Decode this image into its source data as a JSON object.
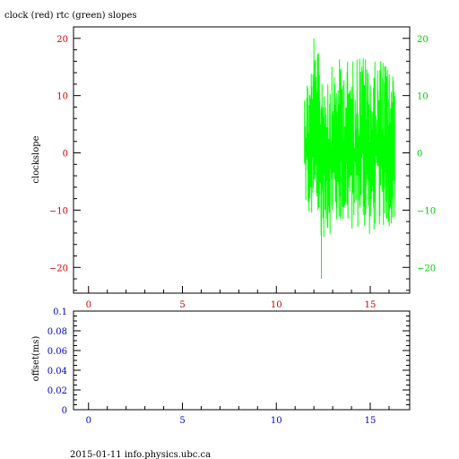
{
  "title": "clock (red) rtc (green) slopes",
  "footer": "2015-01-11 info.physics.ubc.ca",
  "colors": {
    "black": "#000000",
    "clock_axis": "#cc0000",
    "rtc_axis": "#00cc00",
    "rtc_series": "#00ff00",
    "offset_axis": "#0000cc"
  },
  "chart_data": [
    {
      "type": "line",
      "title": "clock (red) rtc (green) slopes",
      "xlabel": "",
      "ylabel": "clockslope",
      "xlim": [
        -0.8,
        17.1
      ],
      "ylim": [
        -24.5,
        22
      ],
      "x_ticks": [
        0,
        5,
        10,
        15
      ],
      "x_tick_labels": [
        "0",
        "5",
        "10",
        "15"
      ],
      "y_ticks": [
        -20,
        -10,
        0,
        10,
        20
      ],
      "y_tick_labels": [
        "−20",
        "−10",
        "0",
        "10",
        "20"
      ],
      "right_y_tick_labels": [
        "−20",
        "−10",
        "0",
        "10",
        "20"
      ],
      "series": [
        {
          "color": "#00ff00",
          "x_range": [
            11.5,
            16.3
          ],
          "envelope_x": [
            11.5,
            12.0,
            12.5,
            13.0,
            13.5,
            14.0,
            14.5,
            15.0,
            15.5,
            16.0,
            16.3
          ],
          "envelope_high": [
            13,
            18,
            17,
            15,
            17,
            16,
            19,
            15,
            17,
            16,
            13
          ],
          "envelope_low": [
            -10,
            -14,
            -15,
            -14,
            -13,
            -14,
            -13,
            -15,
            -13,
            -13,
            -12
          ],
          "extremes": [
            {
              "x": 12.0,
              "y": 20
            },
            {
              "x": 12.4,
              "y": -22
            }
          ]
        }
      ]
    },
    {
      "type": "line",
      "xlabel": "",
      "ylabel": "offset(ms)",
      "xlim": [
        -0.8,
        17.1
      ],
      "ylim": [
        0,
        0.1
      ],
      "x_ticks": [
        0,
        5,
        10,
        15
      ],
      "x_tick_labels": [
        "0",
        "5",
        "10",
        "15"
      ],
      "y_ticks": [
        0,
        0.02,
        0.04,
        0.06,
        0.08,
        0.1
      ],
      "y_tick_labels": [
        "0",
        "0.02",
        "0.04",
        "0.06",
        "0.08",
        "0.1"
      ],
      "series": []
    }
  ]
}
